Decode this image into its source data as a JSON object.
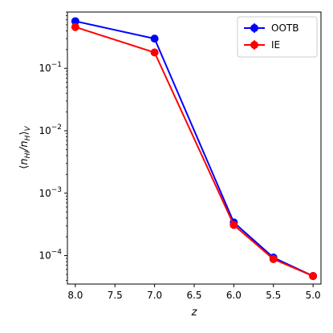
{
  "chart_data": {
    "type": "line",
    "title": "",
    "xlabel": "z",
    "ylabel": "⟨n_HI/n_H⟩_V",
    "x_reversed": true,
    "y_scale": "log",
    "xlim": [
      8.1,
      4.9
    ],
    "ylim": [
      3.5e-05,
      0.8
    ],
    "xticks": [
      "8.0",
      "7.5",
      "7.0",
      "6.5",
      "6.0",
      "5.5",
      "5.0"
    ],
    "xtick_values": [
      8.0,
      7.5,
      7.0,
      6.5,
      6.0,
      5.5,
      5.0
    ],
    "yticks": [
      {
        "value": 0.1,
        "base": "10",
        "exp": "−1"
      },
      {
        "value": 0.01,
        "base": "10",
        "exp": "−2"
      },
      {
        "value": 0.001,
        "base": "10",
        "exp": "−3"
      },
      {
        "value": 0.0001,
        "base": "10",
        "exp": "−4"
      }
    ],
    "grid": false,
    "legend_position": "top-right",
    "x": [
      8.0,
      7.0,
      6.0,
      5.5,
      5.0
    ],
    "series": [
      {
        "name": "OOTB",
        "color": "#0000ff",
        "values": [
          0.57,
          0.3,
          0.00034,
          9.3e-05,
          4.7e-05
        ]
      },
      {
        "name": "IE",
        "color": "#ff0000",
        "values": [
          0.46,
          0.18,
          0.00031,
          8.8e-05,
          4.7e-05
        ]
      }
    ]
  }
}
